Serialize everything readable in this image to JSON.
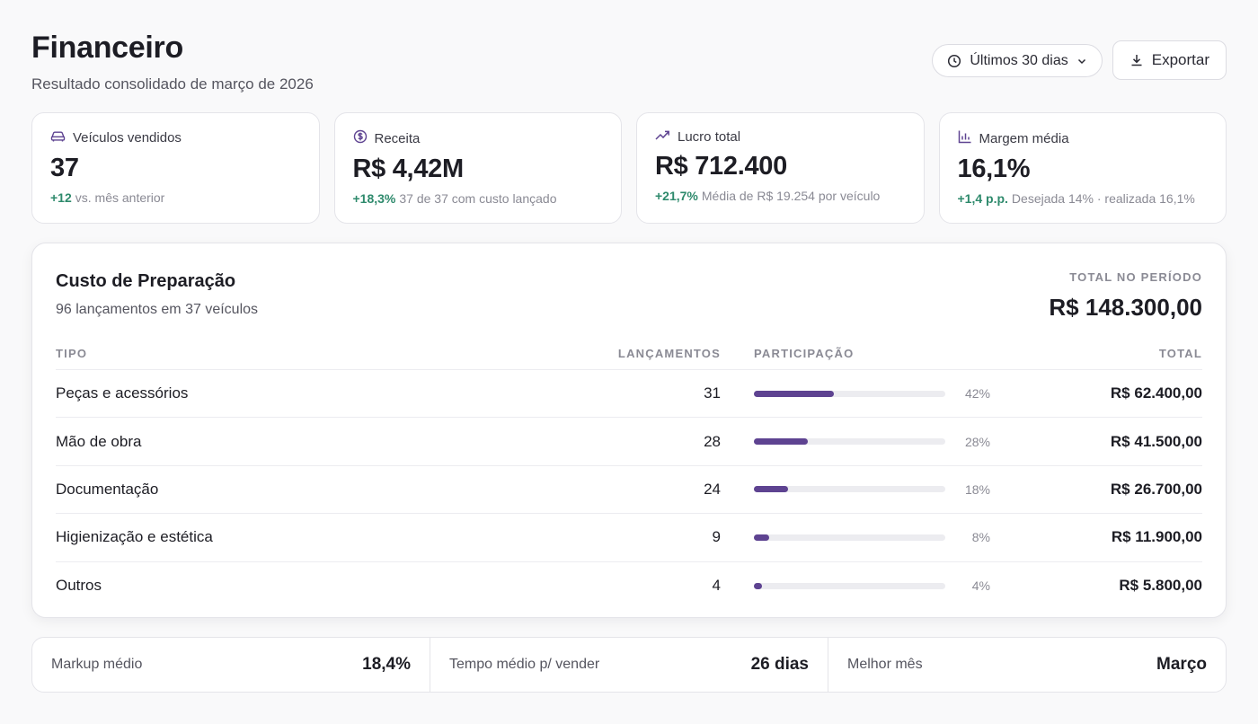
{
  "header": {
    "title": "Financeiro",
    "subtitle": "Resultado consolidado de março de 2026",
    "period_label": "Últimos 30 dias",
    "export_label": "Exportar"
  },
  "kpis": [
    {
      "icon": "car-icon",
      "label": "Veículos vendidos",
      "value": "37",
      "delta": "+12",
      "note": "vs. mês anterior"
    },
    {
      "icon": "dollar-circle-icon",
      "label": "Receita",
      "value": "R$ 4,42M",
      "delta": "+18,3%",
      "note": "37 de 37 com custo lançado"
    },
    {
      "icon": "trending-up-icon",
      "label": "Lucro total",
      "value": "R$ 712.400",
      "delta": "+21,7%",
      "note": "Média de R$ 19.254 por veículo"
    },
    {
      "icon": "bar-chart-icon",
      "label": "Margem média",
      "value": "16,1%",
      "delta": "+1,4 p.p.",
      "note": "Desejada 14% · realizada 16,1%"
    }
  ],
  "panel": {
    "title": "Custo de Preparação",
    "subtitle": "96 lançamentos em 37 veículos",
    "total_label": "TOTAL NO PERÍODO",
    "total_value": "R$ 148.300,00",
    "columns": {
      "tipo": "TIPO",
      "lancamentos": "LANÇAMENTOS",
      "participacao": "PARTICIPAÇÃO",
      "total": "TOTAL"
    },
    "rows": [
      {
        "tipo": "Peças e acessórios",
        "lancamentos": "31",
        "share": 0.42,
        "pct": "42%",
        "total": "R$ 62.400,00"
      },
      {
        "tipo": "Mão de obra",
        "lancamentos": "28",
        "share": 0.28,
        "pct": "28%",
        "total": "R$ 41.500,00"
      },
      {
        "tipo": "Documentação",
        "lancamentos": "24",
        "share": 0.18,
        "pct": "18%",
        "total": "R$ 26.700,00"
      },
      {
        "tipo": "Higienização e estética",
        "lancamentos": "9",
        "share": 0.08,
        "pct": "8%",
        "total": "R$ 11.900,00"
      },
      {
        "tipo": "Outros",
        "lancamentos": "4",
        "share": 0.04,
        "pct": "4%",
        "total": "R$ 5.800,00"
      }
    ]
  },
  "stats": [
    {
      "label": "Markup médio",
      "value": "18,4%"
    },
    {
      "label": "Tempo médio p/ vender",
      "value": "26 dias"
    },
    {
      "label": "Melhor mês",
      "value": "Março"
    }
  ],
  "colors": {
    "accent": "#5e4391",
    "positive": "#2e8a6c"
  }
}
